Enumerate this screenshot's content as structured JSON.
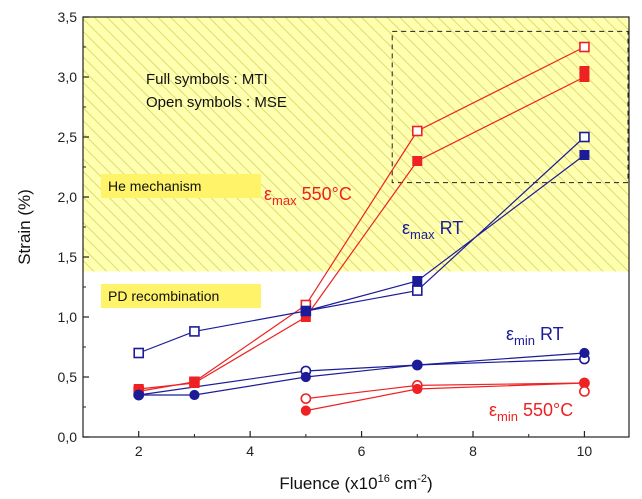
{
  "chart_data": {
    "type": "line",
    "xlabel": "Fluence (x10",
    "xlabel_sup": "16",
    "xlabel_unit": " cm",
    "xlabel_unit_sup": "-2",
    "xlabel_end": ")",
    "ylabel": "Strain (%)",
    "xlim": [
      1.0,
      10.8
    ],
    "ylim": [
      0.0,
      3.5
    ],
    "xticks": [
      2,
      4,
      6,
      8,
      10
    ],
    "yticks": [
      0.0,
      0.5,
      1.0,
      1.5,
      2.0,
      2.5,
      3.0,
      3.5
    ],
    "ytick_labels": [
      "0,0",
      "0,5",
      "1,0",
      "1,5",
      "2,0",
      "2,5",
      "3,0",
      "3,5"
    ],
    "colors": {
      "red": "#ee2222",
      "blue": "#1c1c99",
      "hatch_bg": "#ffffb0",
      "hatch_line": "#e6e080",
      "highlight": "#fff36a"
    },
    "series": [
      {
        "key": "emax550_open",
        "color": "red",
        "marker": "open-square",
        "x": [
          2,
          3,
          5,
          7,
          10
        ],
        "y": [
          0.38,
          0.46,
          1.1,
          2.55,
          3.25
        ]
      },
      {
        "key": "emax550_full",
        "color": "red",
        "marker": "filled-square",
        "x": [
          2,
          3,
          5,
          7,
          10
        ],
        "y": [
          0.4,
          0.45,
          1.0,
          2.3,
          3.0
        ]
      },
      {
        "key": "emaxRT_open",
        "color": "blue",
        "marker": "open-square",
        "x": [
          2,
          3,
          5,
          7,
          10
        ],
        "y": [
          0.7,
          0.88,
          1.05,
          1.22,
          2.5
        ]
      },
      {
        "key": "emaxRT_full",
        "color": "blue",
        "marker": "filled-square",
        "x": [
          5,
          7,
          10
        ],
        "y": [
          1.05,
          1.3,
          2.35
        ]
      },
      {
        "key": "eminRT_open",
        "color": "blue",
        "marker": "open-circle",
        "x": [
          2,
          5,
          7,
          10
        ],
        "y": [
          0.35,
          0.55,
          0.6,
          0.65
        ]
      },
      {
        "key": "eminRT_full",
        "color": "blue",
        "marker": "filled-circle",
        "x": [
          2,
          3,
          5,
          7,
          10
        ],
        "y": [
          0.35,
          0.35,
          0.5,
          0.6,
          0.7
        ]
      },
      {
        "key": "emin550_open",
        "color": "red",
        "marker": "open-circle",
        "x": [
          5,
          7,
          10
        ],
        "y": [
          0.32,
          0.43,
          0.45
        ]
      },
      {
        "key": "emin550_full",
        "color": "red",
        "marker": "filled-circle",
        "x": [
          5,
          7,
          10
        ],
        "y": [
          0.22,
          0.4,
          0.45
        ]
      }
    ],
    "extra_points": [
      {
        "color": "red",
        "marker": "filled-square",
        "x": 10,
        "y": 3.05
      },
      {
        "color": "red",
        "marker": "open-circle",
        "x": 10,
        "y": 0.38
      }
    ],
    "hatched_region": {
      "x": [
        1.0,
        10.8
      ],
      "y": [
        1.38,
        3.5
      ]
    },
    "dashed_box": {
      "x": [
        6.55,
        10.8
      ],
      "y": [
        2.12,
        3.38
      ]
    },
    "annotations": {
      "legend_full": "Full symbols : MTI",
      "legend_open": "Open symbols : MSE",
      "he_mechanism": "He mechanism",
      "pd_recombination": "PD recombination",
      "emax550": {
        "base": "ε",
        "sub": "max",
        "rest": " 550°C"
      },
      "emaxRT": {
        "base": "ε",
        "sub": "max",
        "rest": " RT"
      },
      "eminRT": {
        "base": "ε",
        "sub": "min",
        "rest": " RT"
      },
      "emin550": {
        "base": "ε",
        "sub": "min",
        "rest": " 550°C"
      }
    }
  }
}
